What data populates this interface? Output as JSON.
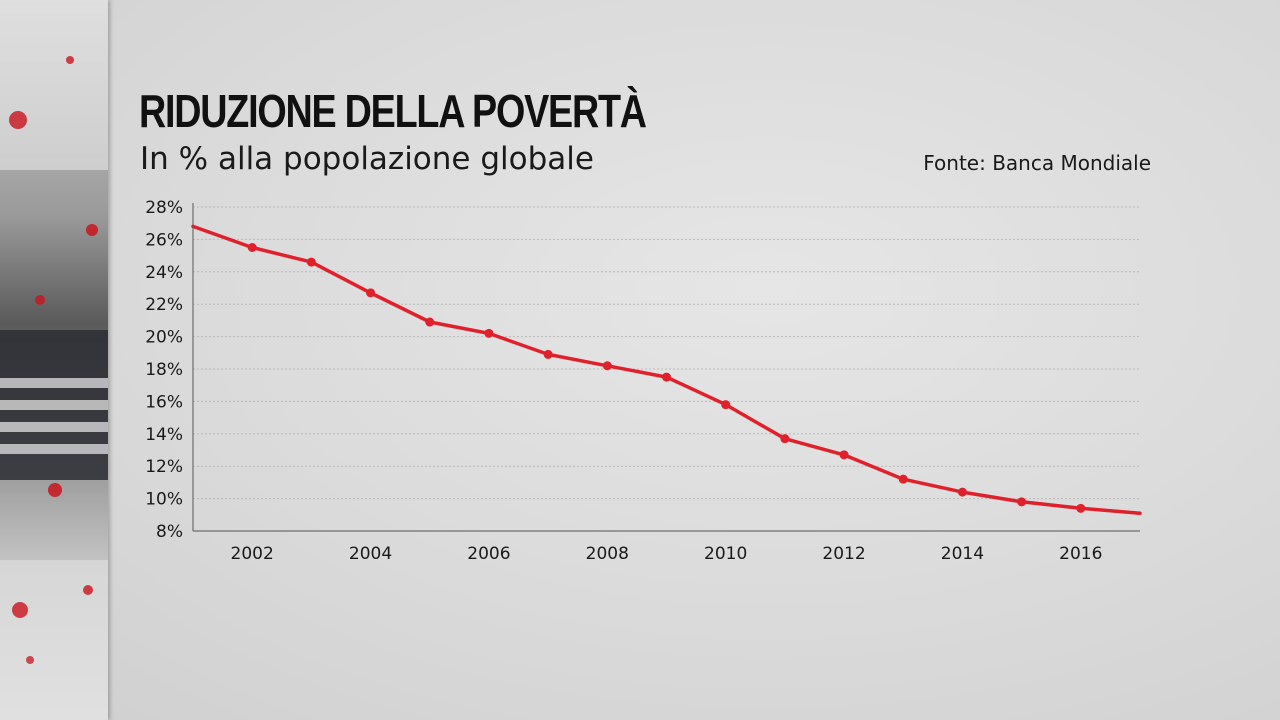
{
  "header": {
    "title": "RIDUZIONE DELLA POVERTÀ",
    "subtitle": "In % alla popolazione globale",
    "source": "Fonte: Banca Mondiale"
  },
  "colors": {
    "line": "#e0202a",
    "grid": "#b9b9b9",
    "axis": "#6e6e6e",
    "text": "#1a1a1a"
  },
  "chart_data": {
    "type": "line",
    "title": "RIDUZIONE DELLA POVERTÀ",
    "subtitle": "In % alla popolazione globale",
    "xlabel": "",
    "ylabel": "",
    "x": [
      2001,
      2002,
      2003,
      2004,
      2005,
      2006,
      2007,
      2008,
      2009,
      2010,
      2011,
      2012,
      2013,
      2014,
      2015,
      2016,
      2017
    ],
    "series": [
      {
        "values": [
          26.8,
          25.5,
          24.6,
          22.7,
          20.9,
          20.2,
          18.9,
          18.2,
          17.5,
          15.8,
          13.7,
          12.7,
          11.2,
          10.4,
          9.8,
          9.4,
          9.1
        ]
      }
    ],
    "markers_on": [
      2002,
      2003,
      2004,
      2005,
      2006,
      2007,
      2008,
      2009,
      2010,
      2011,
      2012,
      2013,
      2014,
      2015,
      2016
    ],
    "xlim": [
      2001,
      2017
    ],
    "ylim": [
      8,
      28
    ],
    "x_ticks": [
      2002,
      2004,
      2006,
      2008,
      2010,
      2012,
      2014,
      2016
    ],
    "x_tick_labels": [
      "2002",
      "2004",
      "2006",
      "2008",
      "2010",
      "2012",
      "2014",
      "2016"
    ],
    "y_ticks": [
      8,
      10,
      12,
      14,
      16,
      18,
      20,
      22,
      24,
      26,
      28
    ],
    "y_tick_labels": [
      "8%",
      "10%",
      "12%",
      "14%",
      "16%",
      "18%",
      "20%",
      "22%",
      "24%",
      "26%",
      "28%"
    ],
    "grid": true,
    "legend": "none"
  }
}
